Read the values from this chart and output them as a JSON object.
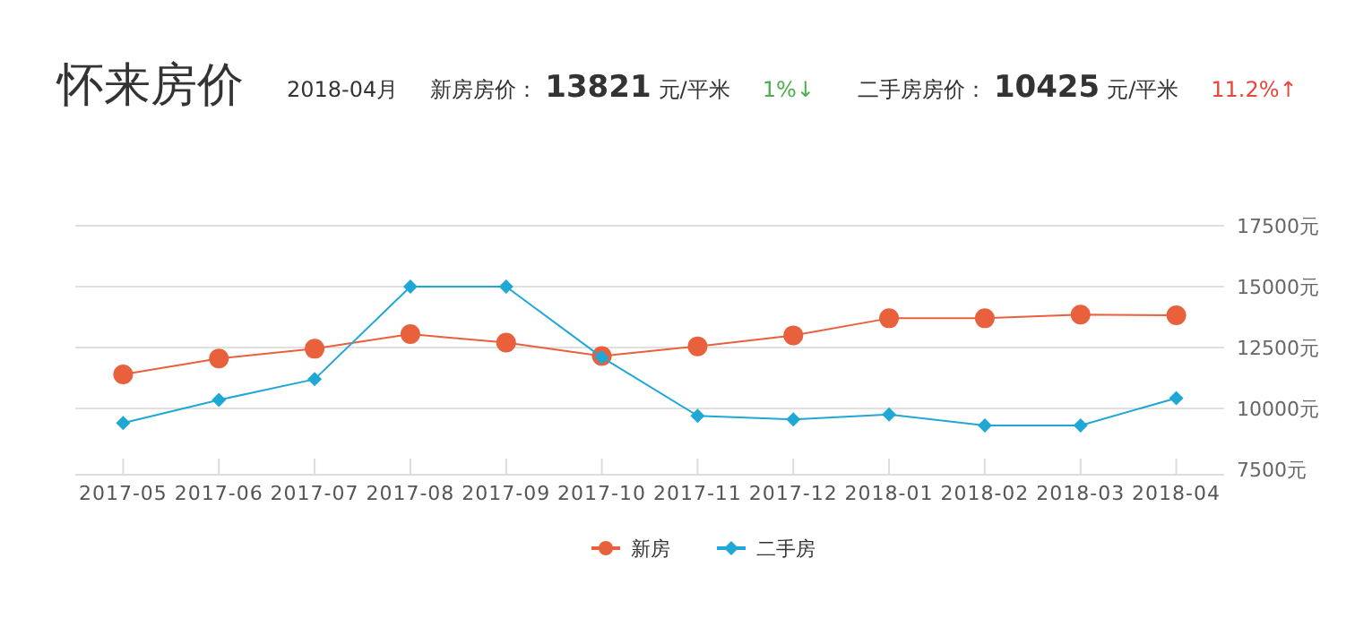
{
  "chart_data": {
    "type": "line",
    "title": "怀来房价",
    "annotations": [
      "2018-04月",
      "新房房价：",
      "13821",
      "元/平米",
      "1%↓",
      "二手房房价：",
      "10425",
      "元/平米",
      "11.2%↑"
    ],
    "categories": [
      "2017-05",
      "2017-06",
      "2017-07",
      "2017-08",
      "2017-09",
      "2017-10",
      "2017-11",
      "2017-12",
      "2018-01",
      "2018-02",
      "2018-03",
      "2018-04"
    ],
    "series": [
      {
        "name": "新房",
        "color": "#e8603c",
        "marker": "circle",
        "values": [
          11400,
          12050,
          12450,
          13050,
          12700,
          12150,
          12550,
          13000,
          13700,
          13700,
          13850,
          13821
        ]
      },
      {
        "name": "二手房",
        "color": "#1fa7d6",
        "marker": "diamond",
        "values": [
          9400,
          10350,
          11200,
          15000,
          15000,
          12100,
          9700,
          9550,
          9750,
          9300,
          9300,
          10425
        ]
      }
    ],
    "ylim": [
      7500,
      17500
    ],
    "yticks": [
      {
        "value": 7500,
        "label": "7500元"
      },
      {
        "value": 10000,
        "label": "10000元"
      },
      {
        "value": 12500,
        "label": "12500元"
      },
      {
        "value": 15000,
        "label": "15000元"
      },
      {
        "value": 17500,
        "label": "17500元"
      }
    ],
    "grid": "y",
    "legend": "bottom"
  }
}
